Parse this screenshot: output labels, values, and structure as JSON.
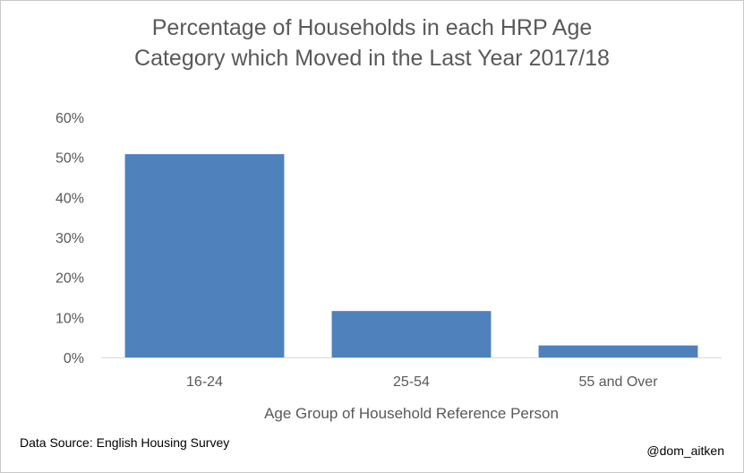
{
  "chart_data": {
    "type": "bar",
    "title_lines": [
      "Percentage of Households in each HRP Age",
      "Category which Moved in the Last Year 2017/18"
    ],
    "categories": [
      "16-24",
      "25-54",
      "55 and Over"
    ],
    "values": [
      50.8,
      11.6,
      3.0
    ],
    "value_unit": "%",
    "xlabel": "Age Group of Household Reference Person",
    "ylabel": "",
    "ylim": [
      0,
      60
    ],
    "yticks": [
      "0%",
      "10%",
      "20%",
      "30%",
      "40%",
      "50%",
      "60%"
    ],
    "grid": false,
    "legend": "none",
    "bar_color": "#4f81bd"
  },
  "footer": {
    "source": "Data Source: English Housing Survey",
    "credit": "@dom_aitken"
  }
}
